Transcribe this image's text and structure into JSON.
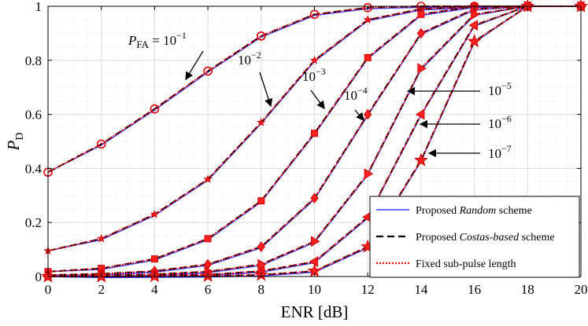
{
  "chart_data": {
    "type": "line",
    "xlabel": "ENR [dB]",
    "ylabel": "P_D",
    "ylabel_main": "P",
    "ylabel_sub": "D",
    "xlim": [
      0,
      20
    ],
    "ylim": [
      0,
      1
    ],
    "x_ticks": [
      "0",
      "2",
      "4",
      "6",
      "8",
      "10",
      "12",
      "14",
      "16",
      "18",
      "20"
    ],
    "y_ticks": [
      "0",
      "0.2",
      "0.4",
      "0.6",
      "0.8",
      "1"
    ],
    "grid": "on (major + minor)",
    "legend_position": "bottom-right",
    "x": [
      0,
      2,
      4,
      6,
      8,
      10,
      12,
      14,
      16,
      18,
      20
    ],
    "curves": [
      {
        "pfa_label": "10^-1",
        "marker": "circle",
        "values": [
          0.386,
          0.49,
          0.62,
          0.76,
          0.89,
          0.97,
          0.995,
          1.0,
          1.0,
          1.0,
          1.0
        ]
      },
      {
        "pfa_label": "10^-2",
        "marker": "star",
        "values": [
          0.095,
          0.14,
          0.23,
          0.36,
          0.57,
          0.8,
          0.95,
          0.99,
          1.0,
          1.0,
          1.0
        ]
      },
      {
        "pfa_label": "10^-3",
        "marker": "square",
        "values": [
          0.018,
          0.03,
          0.065,
          0.14,
          0.28,
          0.53,
          0.81,
          0.97,
          1.0,
          1.0,
          1.0
        ]
      },
      {
        "pfa_label": "10^-4",
        "marker": "diamond",
        "values": [
          0.005,
          0.01,
          0.02,
          0.045,
          0.11,
          0.29,
          0.6,
          0.9,
          0.99,
          1.0,
          1.0
        ]
      },
      {
        "pfa_label": "10^-5",
        "marker": "tri-right",
        "values": [
          0.002,
          0.004,
          0.008,
          0.018,
          0.045,
          0.13,
          0.38,
          0.77,
          0.97,
          1.0,
          1.0
        ]
      },
      {
        "pfa_label": "10^-6",
        "marker": "tri-left",
        "values": [
          0.0,
          0.001,
          0.003,
          0.007,
          0.02,
          0.055,
          0.22,
          0.6,
          0.93,
          1.0,
          1.0
        ]
      },
      {
        "pfa_label": "10^-7",
        "marker": "star",
        "values": [
          0.0,
          0.0,
          0.001,
          0.002,
          0.006,
          0.02,
          0.11,
          0.43,
          0.87,
          1.0,
          1.0
        ]
      }
    ],
    "annotations": [
      {
        "id": "pfa1",
        "base": "P",
        "sub": "FA",
        "rest": " = 10",
        "exp": "−1"
      },
      {
        "id": "pfa2",
        "base": "10",
        "exp": "−2"
      },
      {
        "id": "pfa3",
        "base": "10",
        "exp": "−3"
      },
      {
        "id": "pfa4",
        "base": "10",
        "exp": "−4"
      },
      {
        "id": "pfa5",
        "base": "10",
        "exp": "−5"
      },
      {
        "id": "pfa6",
        "base": "10",
        "exp": "−6"
      },
      {
        "id": "pfa7",
        "base": "10",
        "exp": "−7"
      }
    ],
    "legend": [
      {
        "before": "Proposed ",
        "italic": "Random",
        "after": " scheme",
        "style": "solid",
        "color": "#3a3af0"
      },
      {
        "before": "Proposed ",
        "italic": "Costas-based",
        "after": " scheme",
        "style": "dashed",
        "color": "#000000"
      },
      {
        "before": "Fixed sub-pulse length",
        "italic": "",
        "after": "",
        "style": "dotted",
        "color": "#ff0000"
      }
    ],
    "colors": {
      "random": "#3a3af0",
      "costas": "#000000",
      "fixed": "#ff0000"
    }
  }
}
